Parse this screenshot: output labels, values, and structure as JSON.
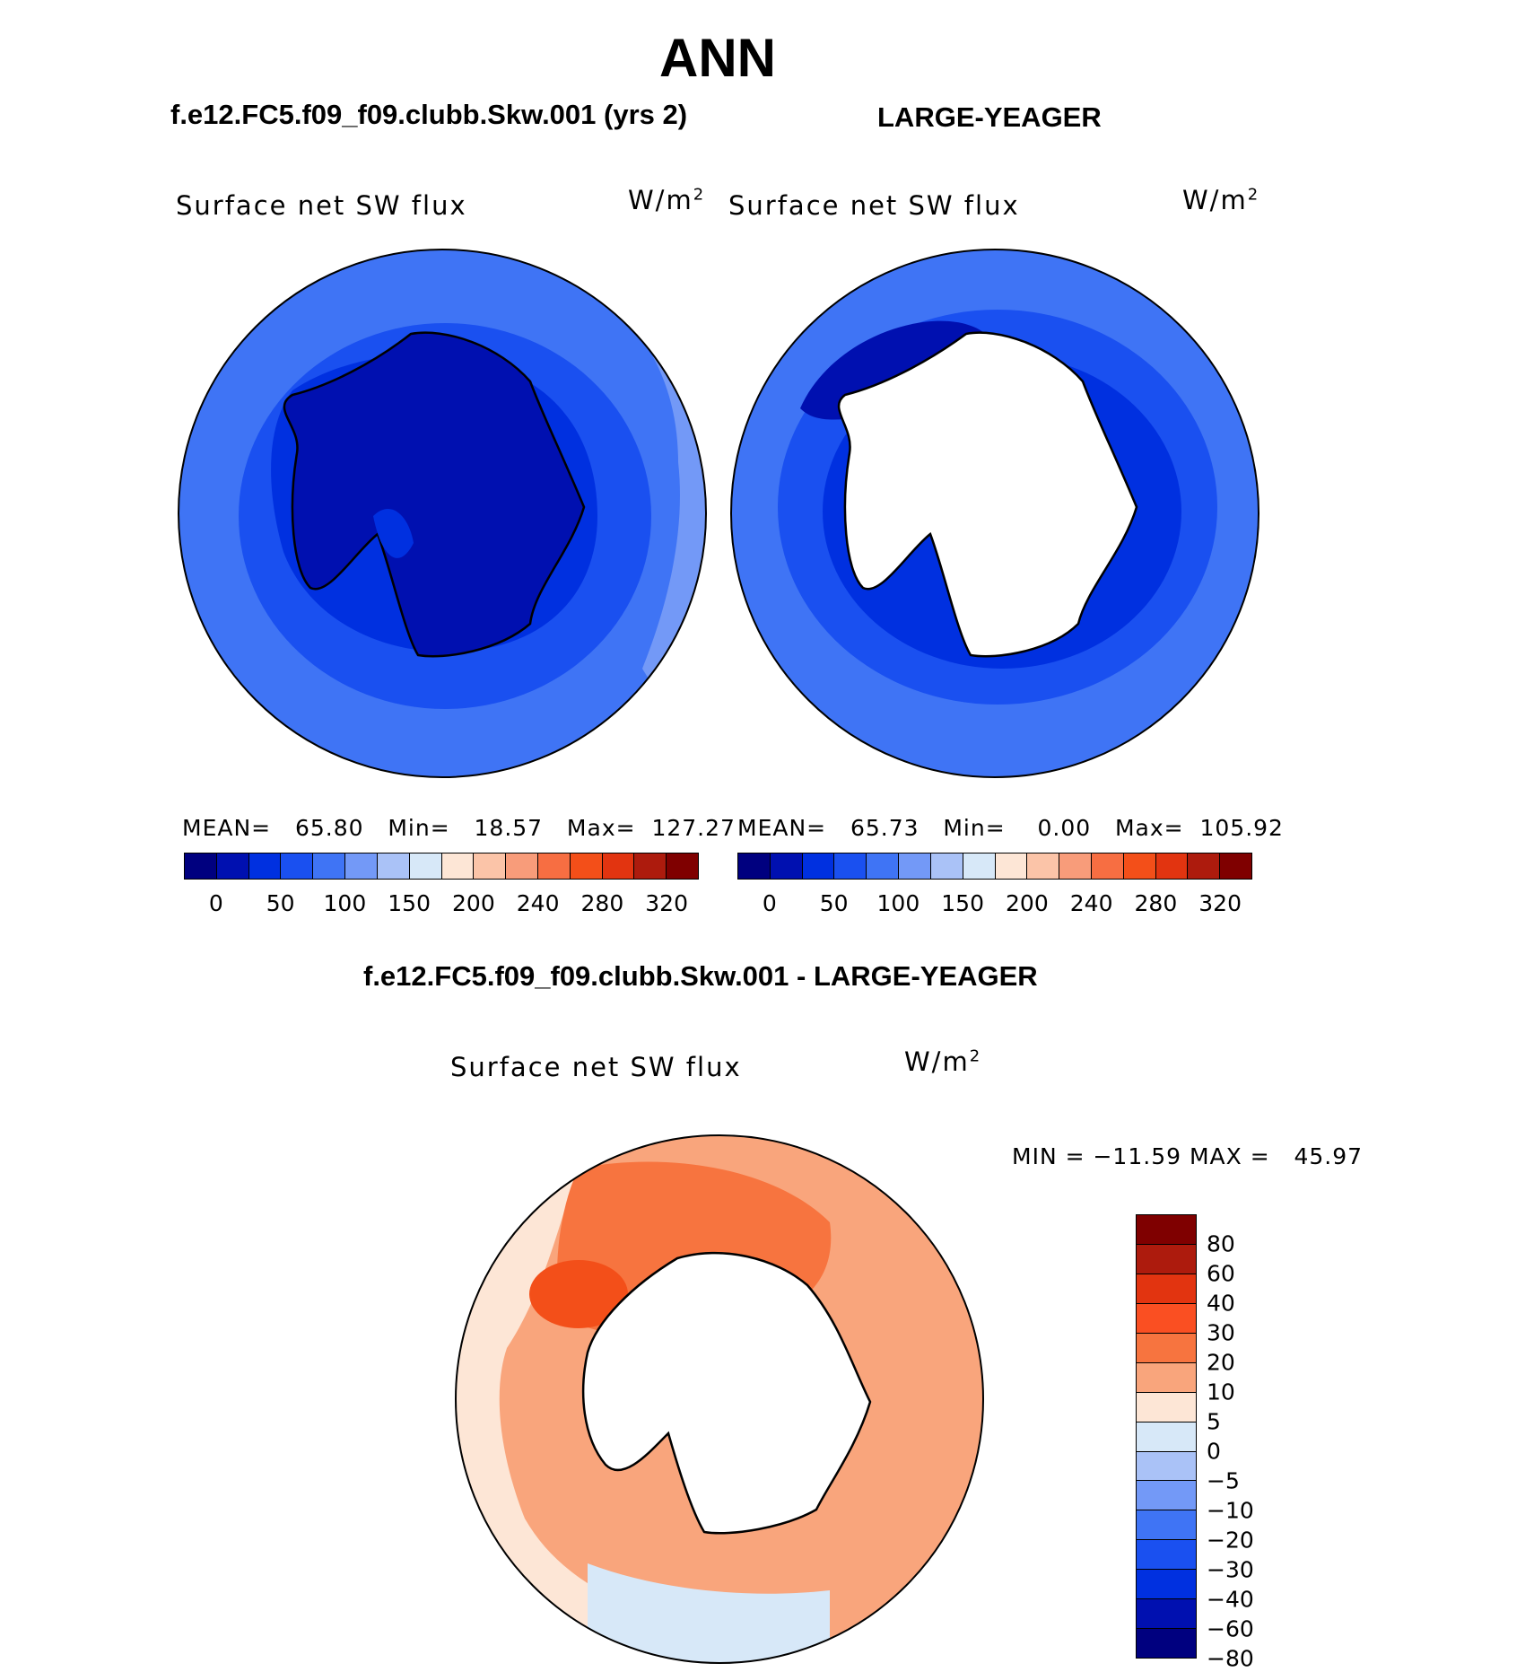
{
  "season": "ANN",
  "panels": {
    "left": {
      "case_title": "f.e12.FC5.f09_f09.clubb.Skw.001 (yrs 2)",
      "field": "Surface net SW flux",
      "units": "W/m",
      "units_exp": "2",
      "stats": "MEAN=   65.80   Min=   18.57   Max=  127.27",
      "has_land_data": true
    },
    "right": {
      "case_title": "LARGE-YEAGER",
      "field": "Surface net SW flux",
      "units": "W/m",
      "units_exp": "2",
      "stats": "MEAN=   65.73   Min=    0.00   Max=  105.92",
      "has_land_data": false
    },
    "diff": {
      "case_title": "f.e12.FC5.f09_f09.clubb.Skw.001 - LARGE-YEAGER",
      "field": "Surface net SW flux",
      "units": "W/m",
      "units_exp": "2",
      "minmax": "MIN = −11.59 MAX =   45.97"
    }
  },
  "colorbar_abs": {
    "colors": [
      "#00007f",
      "#0010b0",
      "#0030e0",
      "#1a50f0",
      "#3f74f5",
      "#7399f7",
      "#aac2f7",
      "#d7e8f8",
      "#fde6d6",
      "#fbc4a8",
      "#f89c7a",
      "#f76e42",
      "#f34f19",
      "#e23410",
      "#ad1b0d",
      "#7f0000"
    ],
    "ticks": [
      "0",
      "50",
      "100",
      "150",
      "200",
      "240",
      "280",
      "320"
    ]
  },
  "colorbar_diff": {
    "colors": [
      "#7f0000",
      "#ad1b0d",
      "#e23410",
      "#fa4f22",
      "#f7743f",
      "#f9a57c",
      "#fde6d6",
      "#d7e8f8",
      "#aac2f7",
      "#7399f7",
      "#3f74f5",
      "#1a50f0",
      "#0030e0",
      "#0010b0",
      "#00007f"
    ],
    "labels": [
      "80",
      "60",
      "40",
      "30",
      "20",
      "10",
      "5",
      "0",
      "−5",
      "−10",
      "−20",
      "−30",
      "−40",
      "−60",
      "−80"
    ]
  }
}
